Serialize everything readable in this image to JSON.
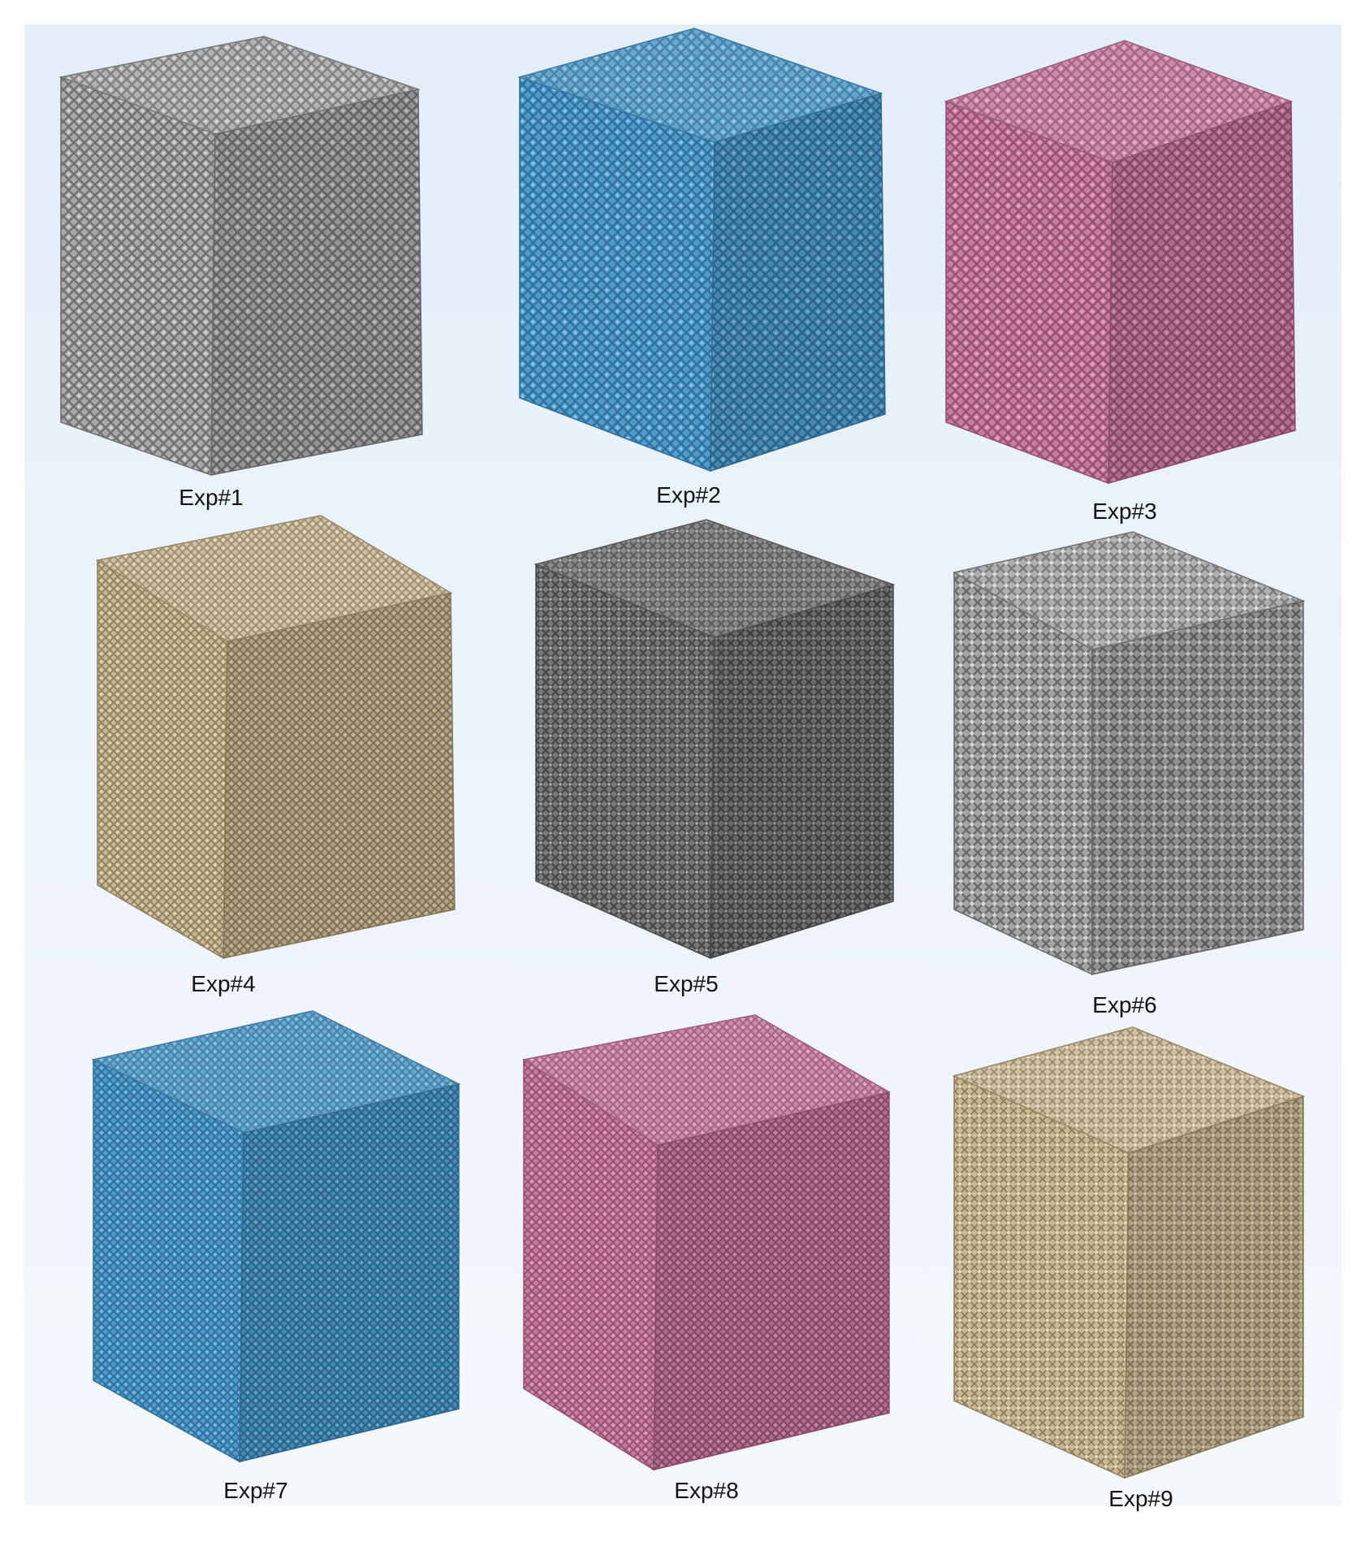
{
  "cubes": [
    {
      "label": "Exp#1",
      "color": "#a8a8a8",
      "dark": "#6e6e6e",
      "light": "#d2d2d2"
    },
    {
      "label": "Exp#2",
      "color": "#4f9ccc",
      "dark": "#2f6f9a",
      "light": "#86c0e4"
    },
    {
      "label": "Exp#3",
      "color": "#c87aa0",
      "dark": "#935073",
      "light": "#e2a6c2"
    },
    {
      "label": "Exp#4",
      "color": "#c8b896",
      "dark": "#8f7f5c",
      "light": "#e2d6bb"
    },
    {
      "label": "Exp#5",
      "color": "#7a7a7a",
      "dark": "#4a4a4a",
      "light": "#a6a6a6"
    },
    {
      "label": "Exp#6",
      "color": "#a4a4a4",
      "dark": "#6a6a6a",
      "light": "#d4d4d4"
    },
    {
      "label": "Exp#7",
      "color": "#4f9ccc",
      "dark": "#2f6f9a",
      "light": "#86c0e4"
    },
    {
      "label": "Exp#8",
      "color": "#c87aa0",
      "dark": "#935073",
      "light": "#e2a6c2"
    },
    {
      "label": "Exp#9",
      "color": "#c8b896",
      "dark": "#8f7f5c",
      "light": "#e2d6bb"
    }
  ]
}
